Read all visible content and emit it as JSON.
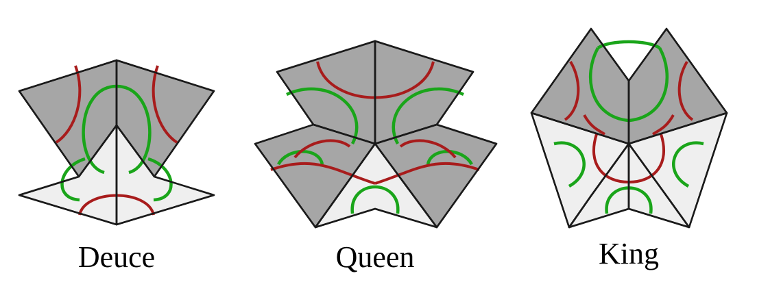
{
  "figures": [
    {
      "id": "deuce",
      "label": "Deuce"
    },
    {
      "id": "queen",
      "label": "Queen"
    },
    {
      "id": "king",
      "label": "King"
    }
  ],
  "colors": {
    "dark_tile": "#a6a6a6",
    "light_tile": "#efefef",
    "outline": "#1a1a1a",
    "green_arc": "#1aa51a",
    "red_arc": "#a81c1c",
    "background": "#ffffff"
  }
}
